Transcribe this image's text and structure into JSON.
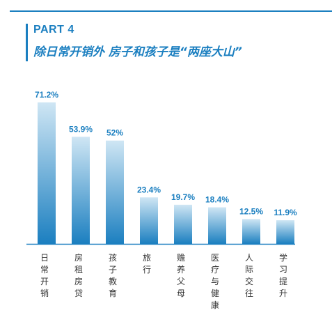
{
  "header": {
    "part_label": "PART 4",
    "headline": "除日常开销外 房子和孩子是“两座大山”"
  },
  "colors": {
    "accent": "#1b7fc0",
    "bar_top": "#cfe6f4",
    "bar_bottom": "#1b7fc0",
    "axis": "#1b7fc0"
  },
  "chart_data": {
    "type": "bar",
    "categories": [
      "日常开销",
      "房租房贷",
      "孩子教育",
      "旅行",
      "赡养父母",
      "医疗与健康",
      "人际交往",
      "学习提升"
    ],
    "values": [
      71.2,
      53.9,
      52,
      23.4,
      19.7,
      18.4,
      12.5,
      11.9
    ],
    "labels": [
      "71.2%",
      "53.9%",
      "52%",
      "23.4%",
      "19.7%",
      "18.4%",
      "12.5%",
      "11.9%"
    ],
    "title": "",
    "xlabel": "",
    "ylabel": "",
    "ylim": [
      0,
      75
    ],
    "grid": false,
    "legend": "none"
  }
}
